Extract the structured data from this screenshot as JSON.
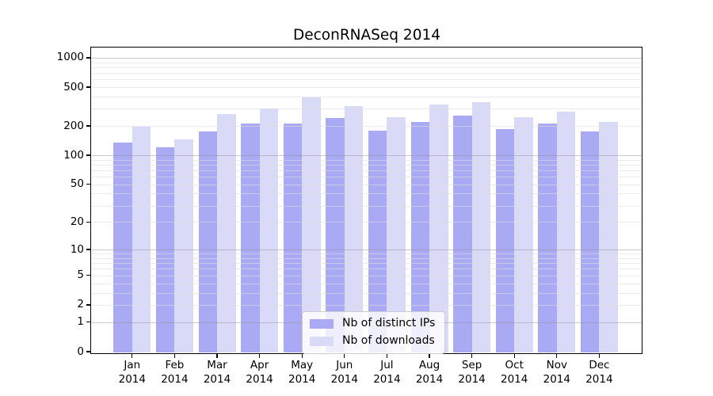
{
  "figure": {
    "title": "DeconRNASeq 2014"
  },
  "chart_data": {
    "type": "bar",
    "title": "DeconRNASeq 2014",
    "categories": [
      "Jan",
      "Feb",
      "Mar",
      "Apr",
      "May",
      "Jun",
      "Jul",
      "Aug",
      "Sep",
      "Oct",
      "Nov",
      "Dec"
    ],
    "year": "2014",
    "series": [
      {
        "name": "Nb of distinct IPs",
        "color": "#a9a9f4",
        "values": [
          135,
          120,
          175,
          210,
          210,
          240,
          180,
          220,
          255,
          185,
          210,
          175
        ]
      },
      {
        "name": "Nb of downloads",
        "color": "#d9d9f8",
        "values": [
          195,
          147,
          265,
          300,
          390,
          320,
          245,
          330,
          350,
          245,
          280,
          220
        ]
      }
    ],
    "xlabel": "",
    "ylabel": "",
    "yscale": "log10(value+1)",
    "yticks": [
      1000,
      500,
      200,
      100,
      50,
      20,
      10,
      5,
      2,
      1,
      0
    ],
    "ylim": [
      0,
      1270
    ],
    "grid": true,
    "grid_minor": true,
    "legend_position": "inside-bottom-center"
  },
  "colors": {
    "bar_dark": "#a9a9f4",
    "bar_light": "#d9d9f8",
    "grid_major": "#bdbdbd",
    "grid_minor": "#e9e9e9",
    "spine": "#000000",
    "legend_border": "#cccccc"
  }
}
